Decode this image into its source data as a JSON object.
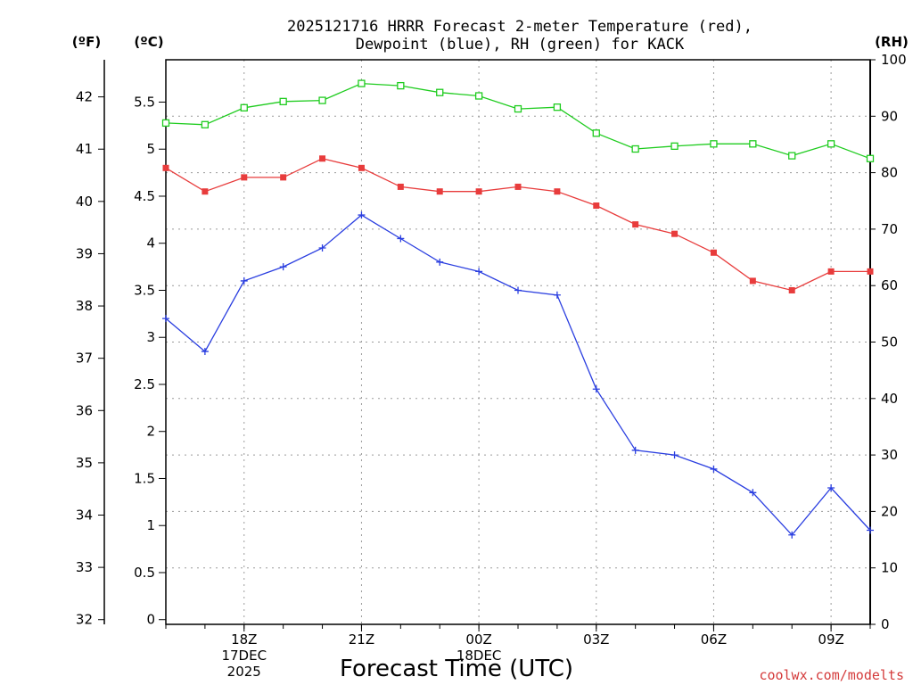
{
  "title_line1": "2025121716 HRRR Forecast 2-meter Temperature (red),",
  "title_line2": "Dewpoint (blue), RH (green) for KACK",
  "units": {
    "left_outer": "(ºF)",
    "left_inner": "(ºC)",
    "right": "(RH)"
  },
  "credit": "coolwx.com/modelts",
  "colors": {
    "temperature": "#e83c3c",
    "dewpoint": "#2a3ee0",
    "rh": "#1fcc1f"
  },
  "chart_data": {
    "type": "line",
    "title": "2025121716 HRRR Forecast 2-meter Temperature (red), Dewpoint (blue), RH (green) for KACK",
    "xlabel": "Forecast Time (UTC)",
    "x_hours": [
      0,
      1,
      2,
      3,
      4,
      5,
      6,
      7,
      8,
      9,
      10,
      11,
      12,
      13,
      14,
      15,
      16,
      17,
      18
    ],
    "x_labels": [
      {
        "hour": 2,
        "lines": [
          "18Z",
          "17DEC",
          "2025"
        ]
      },
      {
        "hour": 5,
        "lines": [
          "21Z"
        ]
      },
      {
        "hour": 8,
        "lines": [
          "00Z",
          "18DEC"
        ]
      },
      {
        "hour": 11,
        "lines": [
          "03Z"
        ]
      },
      {
        "hour": 14,
        "lines": [
          "06Z"
        ]
      },
      {
        "hour": 17,
        "lines": [
          "09Z"
        ]
      }
    ],
    "xlim": [
      0,
      18
    ],
    "axes": {
      "celsius": {
        "range": [
          -0.05,
          5.95
        ],
        "ticks": [
          "0",
          "0.5",
          "1",
          "1.5",
          "2",
          "2.5",
          "3",
          "3.5",
          "4",
          "4.5",
          "5",
          "5.5"
        ]
      },
      "fahrenheit": {
        "ticks": [
          "32",
          "33",
          "34",
          "35",
          "36",
          "37",
          "38",
          "39",
          "40",
          "41",
          "42"
        ]
      },
      "rh": {
        "range": [
          0,
          100
        ],
        "ticks": [
          "0",
          "10",
          "20",
          "30",
          "40",
          "50",
          "60",
          "70",
          "80",
          "90",
          "100"
        ]
      }
    },
    "series": [
      {
        "name": "Temperature",
        "unit": "C",
        "marker": "filled-square",
        "values": [
          4.8,
          4.55,
          4.7,
          4.7,
          4.9,
          4.8,
          4.6,
          4.55,
          4.55,
          4.6,
          4.55,
          4.4,
          4.2,
          4.1,
          3.9,
          3.6,
          3.5,
          3.7,
          3.7
        ]
      },
      {
        "name": "Dewpoint",
        "unit": "C",
        "marker": "plus",
        "values": [
          3.2,
          2.85,
          3.6,
          3.75,
          3.95,
          4.3,
          4.05,
          3.8,
          3.7,
          3.5,
          3.45,
          2.45,
          1.8,
          1.75,
          1.6,
          1.35,
          0.9,
          1.4,
          0.95
        ]
      },
      {
        "name": "RH",
        "unit": "%",
        "marker": "open-square",
        "values": [
          88.8,
          88.5,
          91.5,
          92.6,
          92.8,
          95.8,
          95.4,
          94.2,
          93.6,
          91.3,
          91.6,
          87.0,
          84.2,
          84.7,
          85.1,
          85.1,
          83.0,
          85.1,
          82.5
        ]
      }
    ]
  }
}
